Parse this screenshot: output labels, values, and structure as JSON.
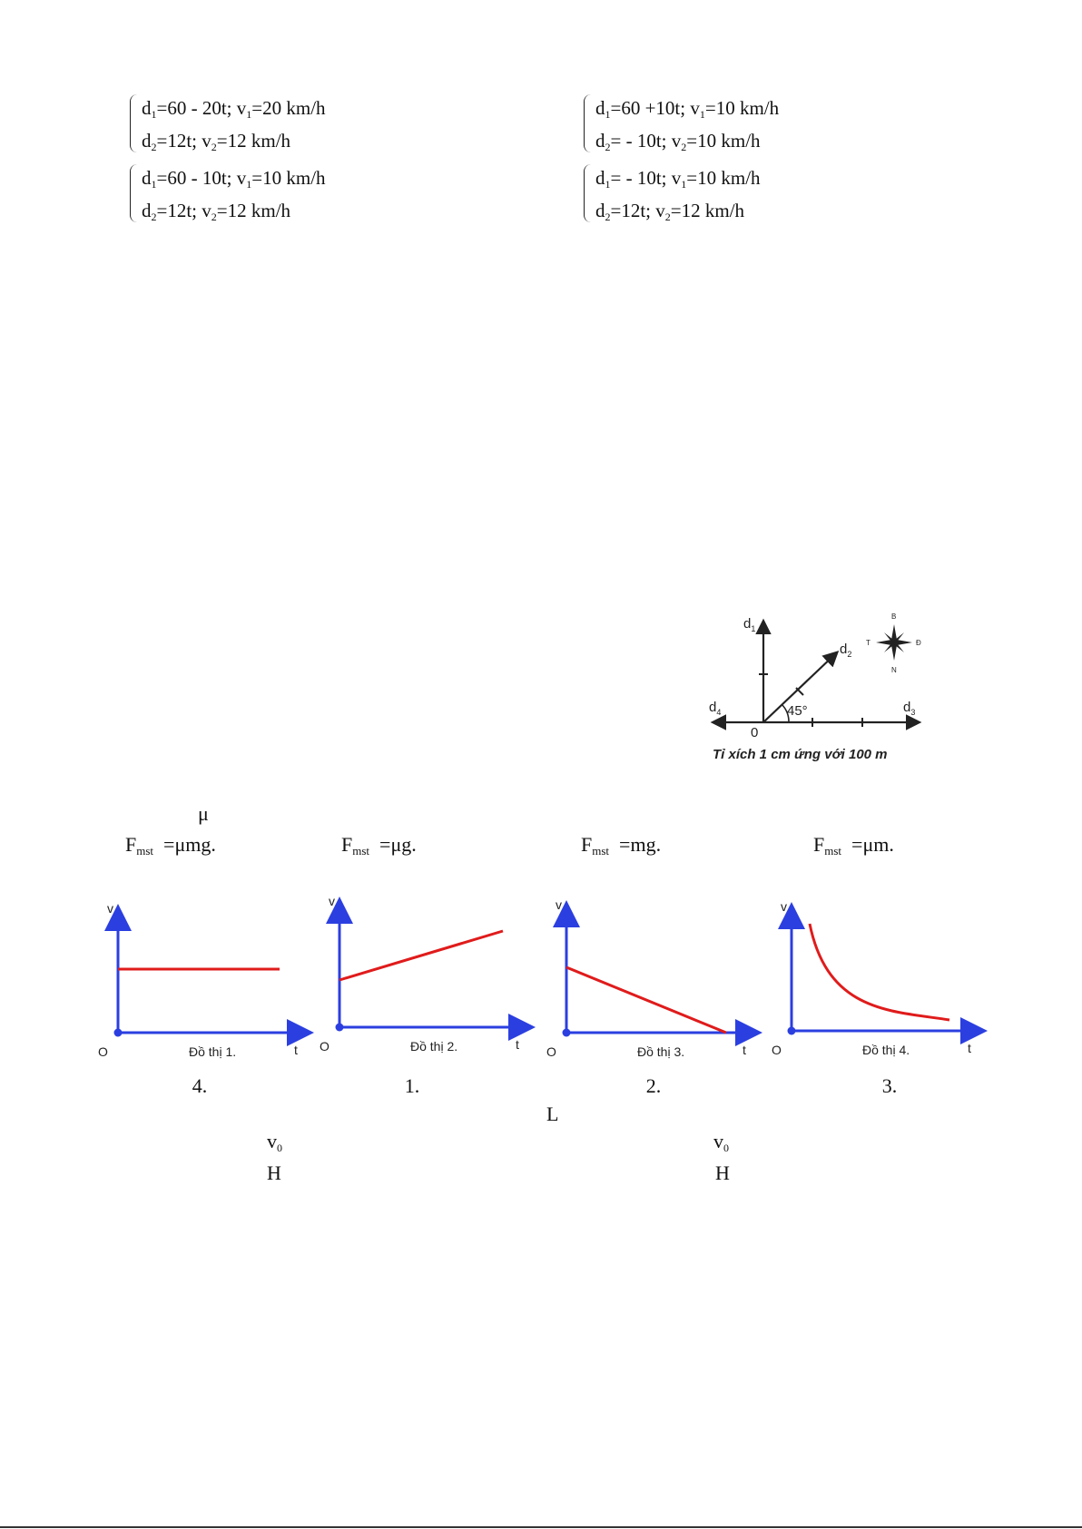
{
  "systems": [
    {
      "row1": {
        "lhs": "d",
        "s1": "1",
        "mid": "=60 - 20t; v",
        "s2": "1",
        "rhs": "=20 km/h"
      },
      "row2": {
        "lhs": "d",
        "s1": "2",
        "mid": "=12t; v",
        "s2": "2",
        "rhs": "=12 km/h"
      }
    },
    {
      "row1": {
        "lhs": "d",
        "s1": "1",
        "mid": "=60 +10t; v",
        "s2": "1",
        "rhs": "=10 km/h"
      },
      "row2": {
        "lhs": "d",
        "s1": "2",
        "mid": "= - 10t; v",
        "s2": "2",
        "rhs": "=10 km/h"
      }
    },
    {
      "row1": {
        "lhs": "d",
        "s1": "1",
        "mid": "=60 - 10t; v",
        "s2": "1",
        "rhs": "=10 km/h"
      },
      "row2": {
        "lhs": "d",
        "s1": "2",
        "mid": "=12t; v",
        "s2": "2",
        "rhs": "=12 km/h"
      }
    },
    {
      "row1": {
        "lhs": "d",
        "s1": "1",
        "mid": "= - 10t; v",
        "s2": "1",
        "rhs": "=10 km/h"
      },
      "row2": {
        "lhs": "d",
        "s1": "2",
        "mid": "=12t; v",
        "s2": "2",
        "rhs": "=12 km/h"
      }
    }
  ],
  "map_figure": {
    "axis_d1": "d",
    "axis_d1_sub": "1",
    "axis_d2": "d",
    "axis_d2_sub": "2",
    "axis_d3": "d",
    "axis_d3_sub": "3",
    "axis_d4": "d",
    "axis_d4_sub": "4",
    "origin": "0",
    "angle": "45°",
    "compass": {
      "north": "B",
      "south": "N",
      "east": "Đ",
      "west": "T"
    },
    "caption": "Tỉ xích 1 cm ứng với 100 m"
  },
  "mu_symbol": "μ",
  "friction_options": [
    {
      "F": "F",
      "sub": "mst",
      "rest": "=μmg."
    },
    {
      "F": "F",
      "sub": "mst",
      "rest": "=μg."
    },
    {
      "F": "F",
      "sub": "mst",
      "rest": "=mg."
    },
    {
      "F": "F",
      "sub": "mst",
      "rest": "=μm."
    }
  ],
  "graphs": [
    {
      "ylabel": "v",
      "xlabel": "t",
      "origin": "O",
      "caption": "Đồ thị 1.",
      "answer": "4."
    },
    {
      "ylabel": "v",
      "xlabel": "t",
      "origin": "O",
      "caption": "Đồ thị 2.",
      "answer": "1."
    },
    {
      "ylabel": "v",
      "xlabel": "t",
      "origin": "O",
      "caption": "Đồ thị 3.",
      "answer": "2."
    },
    {
      "ylabel": "v",
      "xlabel": "t",
      "origin": "O",
      "caption": "Đồ thị 4.",
      "answer": "3."
    }
  ],
  "colors": {
    "axis": "#2b3fe0",
    "curve": "#e01b1b"
  },
  "letter_L": "L",
  "v0_left": {
    "v": "v",
    "sub": "0"
  },
  "v0_right": {
    "v": "v",
    "sub": "0"
  },
  "H_left": "H",
  "H_right": "H"
}
